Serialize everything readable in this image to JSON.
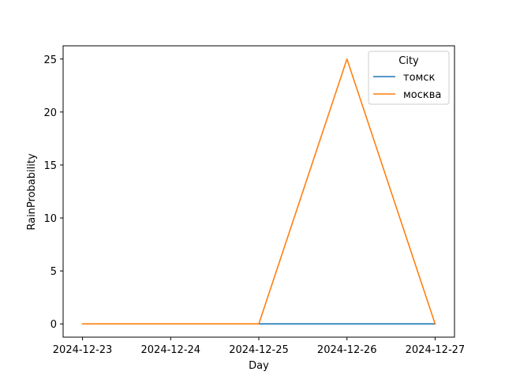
{
  "chart_data": {
    "type": "line",
    "title": "",
    "xlabel": "Day",
    "ylabel": "RainProbability",
    "x": [
      "2024-12-23",
      "2024-12-24",
      "2024-12-25",
      "2024-12-26",
      "2024-12-27"
    ],
    "xticks": [
      "2024-12-23",
      "2024-12-24",
      "2024-12-25",
      "2024-12-26",
      "2024-12-27"
    ],
    "yticks": [
      "0",
      "5",
      "10",
      "15",
      "20",
      "25"
    ],
    "ylim": [
      -1.25,
      26.25
    ],
    "grid": false,
    "legend": {
      "title": "City",
      "placement": "top-right"
    },
    "series": [
      {
        "name": "томск",
        "color": "#1f77b4",
        "points": [
          {
            "x": "2024-12-25",
            "y": 0
          },
          {
            "x": "2024-12-26",
            "y": 0
          },
          {
            "x": "2024-12-27",
            "y": 0
          }
        ]
      },
      {
        "name": "москва",
        "color": "#ff7f0e",
        "points": [
          {
            "x": "2024-12-23",
            "y": 0
          },
          {
            "x": "2024-12-24",
            "y": 0
          },
          {
            "x": "2024-12-25",
            "y": 0
          },
          {
            "x": "2024-12-26",
            "y": 25
          },
          {
            "x": "2024-12-27",
            "y": 0
          }
        ]
      }
    ]
  }
}
